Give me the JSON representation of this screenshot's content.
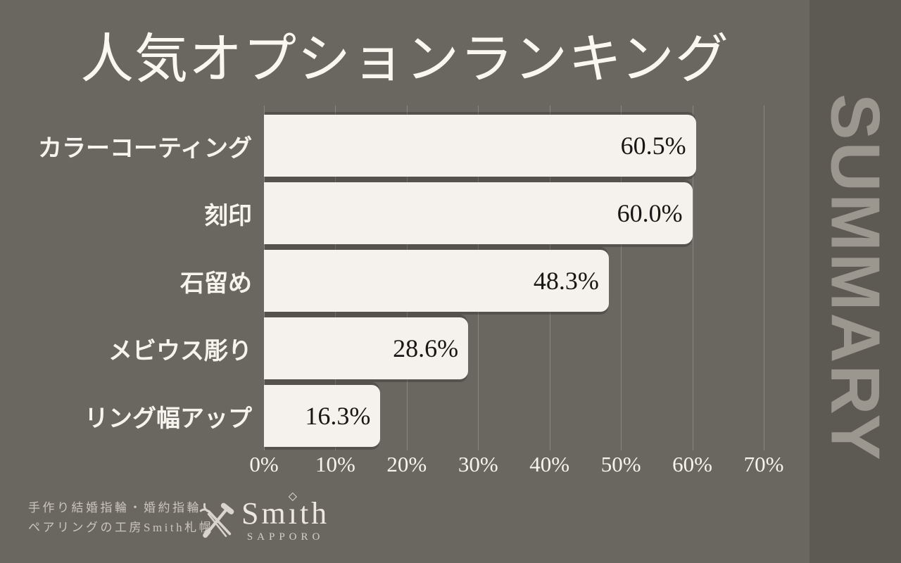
{
  "title": "人気オプションランキング",
  "sidebar": {
    "label": "SUMMARY"
  },
  "chart_data": {
    "type": "bar",
    "orientation": "horizontal",
    "title": "人気オプションランキング",
    "categories": [
      "カラーコーティング",
      "刻印",
      "石留め",
      "メビウス彫り",
      "リング幅アップ"
    ],
    "values": [
      60.5,
      60.0,
      48.3,
      28.6,
      16.3
    ],
    "value_labels": [
      "60.5%",
      "60.0%",
      "48.3%",
      "28.6%",
      "16.3%"
    ],
    "x_ticks": [
      "0%",
      "10%",
      "20%",
      "30%",
      "40%",
      "50%",
      "60%",
      "70%"
    ],
    "xlim": [
      0,
      70
    ],
    "grid": true,
    "legend": "none",
    "bar_color": "#f5f2ee",
    "value_text_color": "#171614"
  },
  "footer": {
    "tagline_line1": "手作り結婚指輪・婚約指輪",
    "tagline_line2": "ペアリングの工房Smith札幌",
    "logo": {
      "name": "Smith",
      "subtitle": "SAPPORO",
      "icon": "crossed-jewelry-tools-icon",
      "gem_icon": "diamond-icon"
    }
  },
  "colors": {
    "background": "#6a6660",
    "sidebar_background": "#5d5a54",
    "summary_text": "#9b968e",
    "bar_fill": "#f5f2ee",
    "grid_line": "#8a867e",
    "heading_text": "#faf7f1",
    "tagline_text": "#c9c5be"
  }
}
